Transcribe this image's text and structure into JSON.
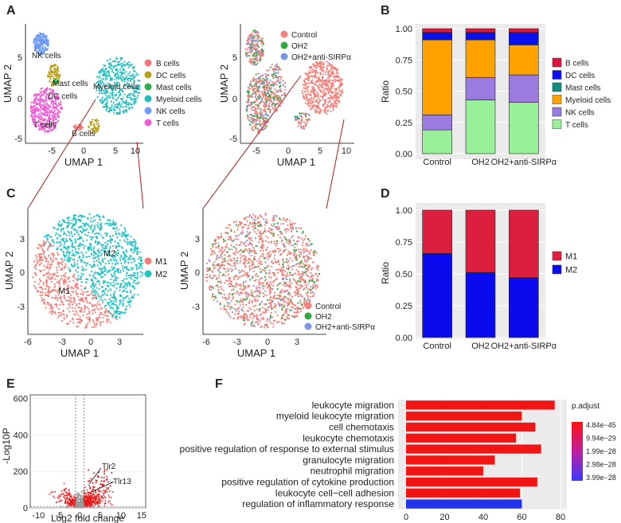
{
  "panel_labels": {
    "a": "A",
    "b": "B",
    "c": "C",
    "d": "D",
    "e": "E",
    "f": "F"
  },
  "colors": {
    "b_cells": "#F4777A",
    "dc_cells": "#B8A21A",
    "mast_cells": "#2EAD4B",
    "myeloid_cells": "#23BFBF",
    "nk_cells": "#6F9BF5",
    "t_cells": "#F05CD6",
    "control": "#F47F78",
    "oh2": "#2EA83C",
    "oh2_anti": "#7B98E6",
    "bar_b": "#E0143C",
    "bar_dc": "#0A10EE",
    "bar_mast": "#138D80",
    "bar_myeloid": "#FFA200",
    "bar_nk": "#9C7BE0",
    "bar_t": "#9AF09A",
    "m1": "#DD1E3C",
    "m2": "#0A0AEE",
    "m1_umap": "#F47F78",
    "m2_umap": "#1EC2C2"
  },
  "umap_a": {
    "xlabel": "UMAP 1",
    "ylabel": "UMAP 2",
    "xticks": [
      "-5",
      "0",
      "5",
      "10"
    ],
    "yticks": [
      "5",
      "0",
      "-5"
    ],
    "cluster_labels": [
      "NK cells",
      "Mast cells",
      "DC cells",
      "Myeloid cells",
      "T cells",
      "B cells"
    ],
    "legend": [
      "B cells",
      "DC cells",
      "Mast cells",
      "Myeloid cells",
      "NK cells",
      "T cells"
    ],
    "group_legend": [
      "Control",
      "OH2",
      "OH2+anti-SIRPα"
    ]
  },
  "umap_c": {
    "xlabel": "UMAP 1",
    "ylabel": "UMAP 2",
    "xticks": [
      "-6",
      "-3",
      "0",
      "3"
    ],
    "yticks": [
      "3",
      "0",
      "-3"
    ],
    "cluster_labels": [
      "M2",
      "M1"
    ],
    "legend": [
      "M1",
      "M2"
    ],
    "group_legend": [
      "Control",
      "OH2",
      "OH2+anti-SIRPα"
    ]
  },
  "chart_data": [
    {
      "panel": "B",
      "type": "bar",
      "stacked": true,
      "categories": [
        "Control",
        "OH2",
        "OH2+anti-SIRPα"
      ],
      "ylabel": "Ratio",
      "ylim": [
        0,
        1
      ],
      "yticks": [
        "0.00",
        "0.25",
        "0.50",
        "0.75",
        "1.00"
      ],
      "series": [
        {
          "name": "T cells",
          "values": [
            0.19,
            0.43,
            0.41
          ]
        },
        {
          "name": "NK cells",
          "values": [
            0.12,
            0.18,
            0.22
          ]
        },
        {
          "name": "Myeloid cells",
          "values": [
            0.6,
            0.3,
            0.24
          ]
        },
        {
          "name": "Mast cells",
          "values": [
            0.0,
            0.0,
            0.0
          ]
        },
        {
          "name": "DC cells",
          "values": [
            0.06,
            0.06,
            0.1
          ]
        },
        {
          "name": "B cells",
          "values": [
            0.03,
            0.03,
            0.03
          ]
        }
      ],
      "legend": [
        "B cells",
        "DC cells",
        "Mast cells",
        "Myeloid cells",
        "NK cells",
        "T cells"
      ]
    },
    {
      "panel": "D",
      "type": "bar",
      "stacked": true,
      "categories": [
        "Control",
        "OH2",
        "OH2+anti-SIRPα"
      ],
      "ylabel": "Ratio",
      "ylim": [
        0,
        1
      ],
      "yticks": [
        "0.00",
        "0.25",
        "0.50",
        "0.75",
        "1.00"
      ],
      "series": [
        {
          "name": "M2",
          "values": [
            0.66,
            0.51,
            0.47
          ]
        },
        {
          "name": "M1",
          "values": [
            0.34,
            0.49,
            0.53
          ]
        }
      ],
      "legend": [
        "M1",
        "M2"
      ]
    },
    {
      "panel": "E",
      "type": "scatter",
      "xlabel": "Log2 fold change",
      "ylabel": "-Log10P",
      "xticks": [
        "-10",
        "-5",
        "0",
        "5",
        "10",
        "15"
      ],
      "yticks": [
        "0",
        "200",
        "400",
        "600"
      ],
      "xlim": [
        -12,
        16
      ],
      "ylim": [
        0,
        620
      ],
      "annotations": [
        "Tlr2",
        "Tlr13"
      ]
    },
    {
      "panel": "F",
      "type": "bar",
      "orientation": "horizontal",
      "categories": [
        "leukocyte migration",
        "myeloid leukocyte migration",
        "cell chemotaxis",
        "leukocyte chemotaxis",
        "positive regulation of response to external stimulus",
        "granulocyte migration",
        "neutrophil migration",
        "positive regulation of cytokine production",
        "leukocyte cell−cell adhesion",
        "regulation of inflammatory response"
      ],
      "values": [
        77,
        60,
        67,
        57,
        70,
        46,
        40,
        68,
        59,
        60
      ],
      "p_adjust": [
        4.84e-45,
        4.84e-45,
        4.84e-45,
        4.84e-45,
        4.84e-45,
        4.84e-45,
        4.84e-45,
        4.84e-45,
        4.84e-45,
        3.99e-28
      ],
      "xticks": [
        "0",
        "20",
        "40",
        "60",
        "80"
      ],
      "xlim": [
        0,
        80
      ],
      "legend_title": "p.adjust",
      "legend_ticks": [
        "4.84e−45",
        "9.94e−29",
        "1.99e−28",
        "2.98e−28",
        "3.99e−28"
      ]
    }
  ]
}
